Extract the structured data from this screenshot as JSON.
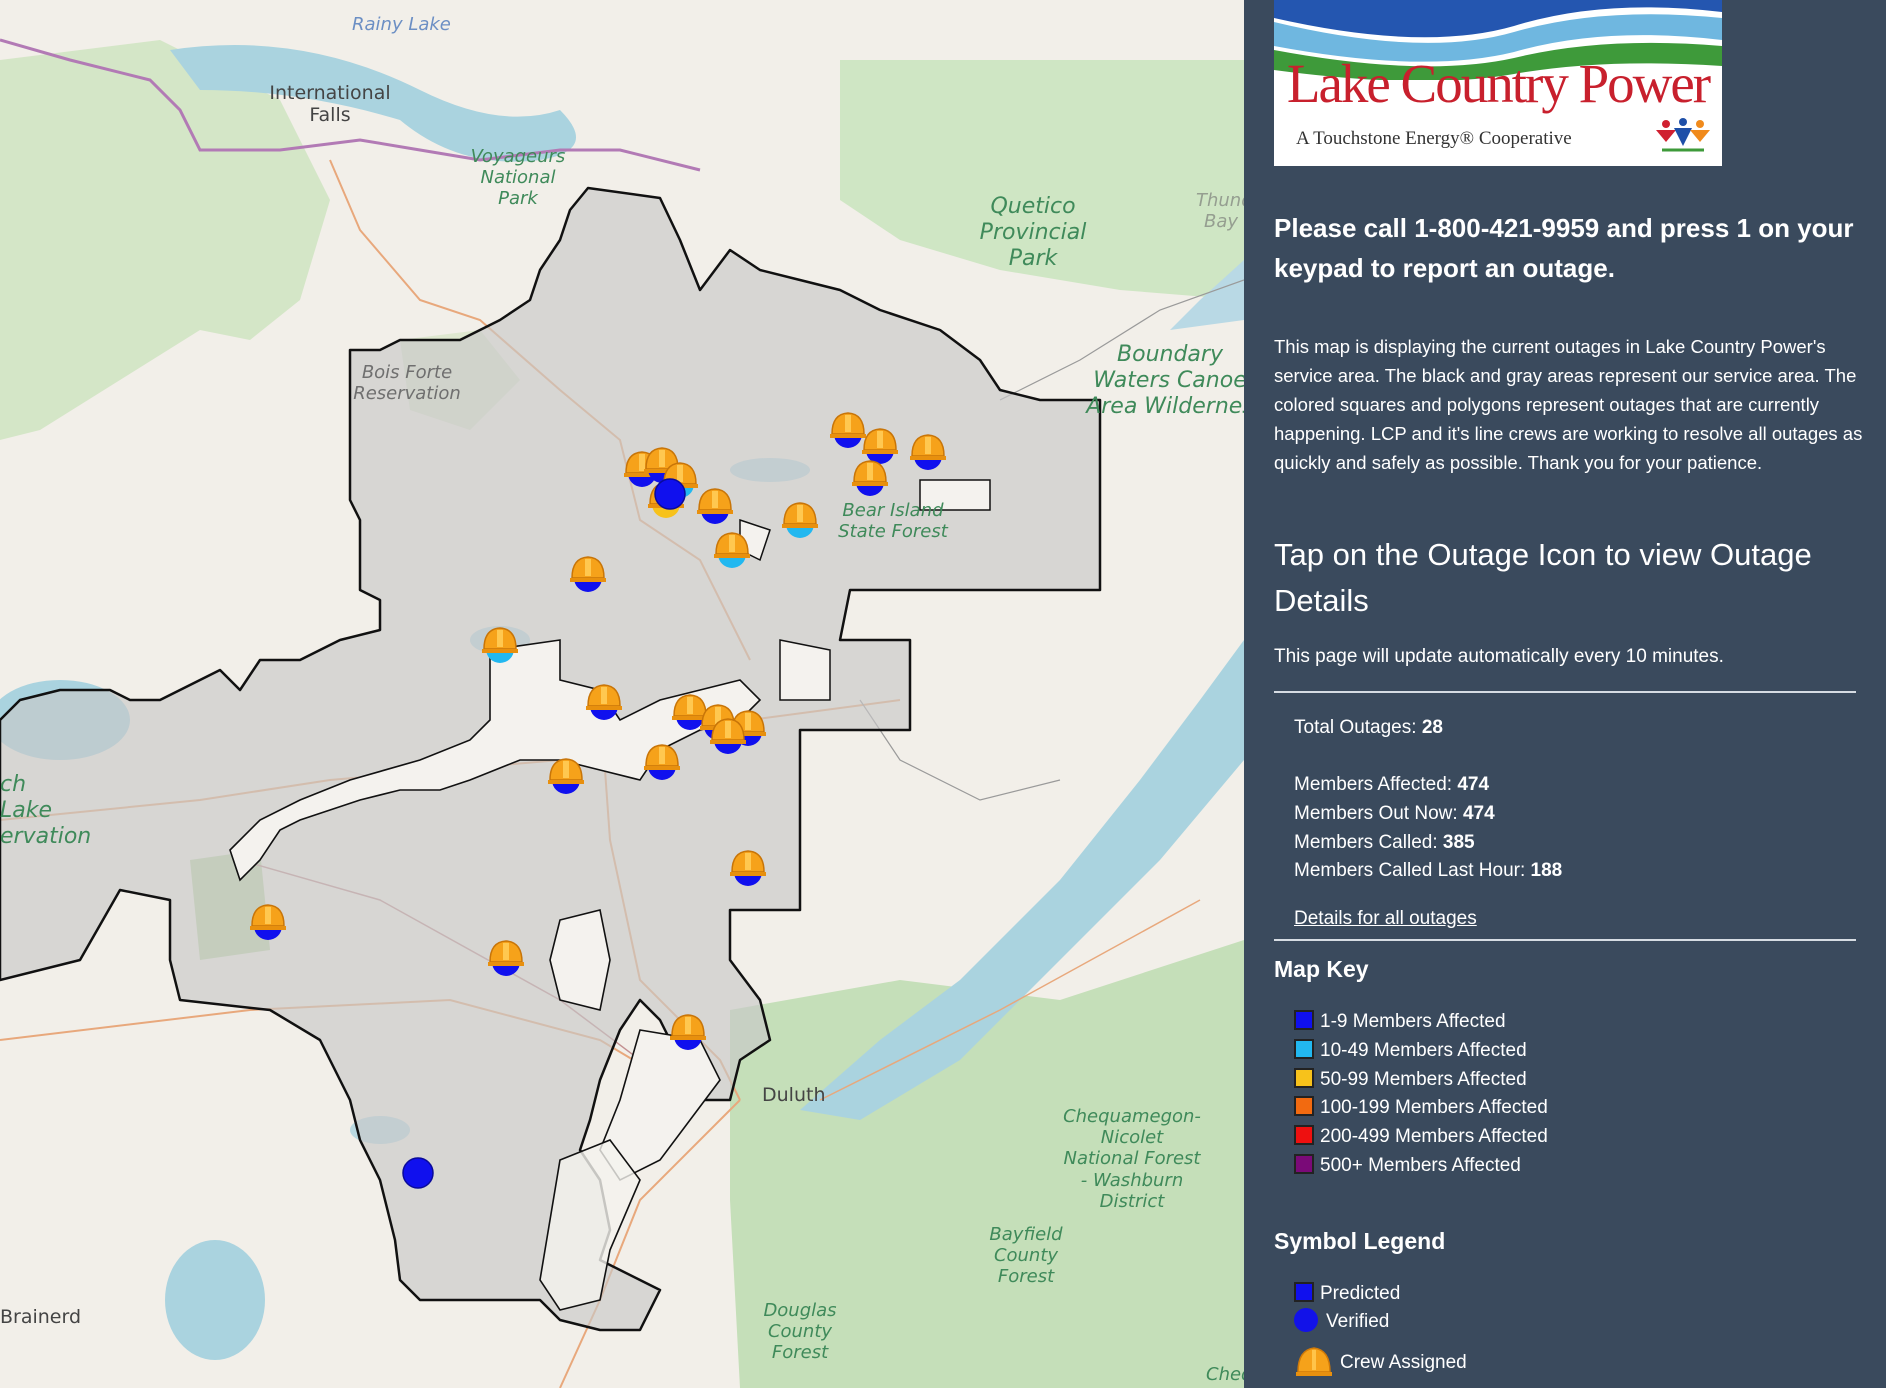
{
  "map": {
    "labels": {
      "rainy_lake": "Rainy Lake",
      "international_falls": "International Falls",
      "voyageurs": "Voyageurs National Park",
      "quetico": "Quetico Provincial Park",
      "bois_forte": "Bois Forte Reservation",
      "boundary_waters": "Boundary Waters Canoe Area Wildernes",
      "bear_island": "Bear Island State Forest",
      "leech_lake": "ch Lake ervation",
      "duluth": "Duluth",
      "chequamegon": "Chequamegon- Nicolet National Forest - Washburn District",
      "bayfield": "Bayfield County Forest",
      "douglas": "Douglas County Forest",
      "brainerd": "Brainerd",
      "thunder_bay": "Thunder Bay",
      "chequa_bottom": "Cheq"
    },
    "outage_markers": [
      {
        "type": "crew",
        "level": "1-9"
      },
      {
        "type": "crew",
        "level": "1-9"
      },
      {
        "type": "crew",
        "level": "10-49"
      },
      {
        "type": "crew",
        "level": "50-99"
      },
      {
        "type": "verified",
        "level": "1-9"
      },
      {
        "type": "crew",
        "level": "1-9"
      },
      {
        "type": "crew",
        "level": "10-49"
      },
      {
        "type": "crew",
        "level": "1-9"
      },
      {
        "type": "crew",
        "level": "10-49"
      },
      {
        "type": "crew",
        "level": "1-9"
      },
      {
        "type": "crew",
        "level": "1-9"
      },
      {
        "type": "crew",
        "level": "1-9"
      },
      {
        "type": "crew",
        "level": "1-9"
      },
      {
        "type": "crew",
        "level": "1-9"
      },
      {
        "type": "crew",
        "level": "1-9"
      },
      {
        "type": "crew",
        "level": "1-9"
      },
      {
        "type": "crew",
        "level": "1-9"
      },
      {
        "type": "crew",
        "level": "1-9"
      },
      {
        "type": "crew",
        "level": "1-9"
      },
      {
        "type": "verified",
        "level": "1-9"
      },
      {
        "type": "crew",
        "level": "1-9"
      },
      {
        "type": "crew",
        "level": "1-9"
      },
      {
        "type": "crew",
        "level": "1-9"
      },
      {
        "type": "crew",
        "level": "1-9"
      },
      {
        "type": "crew",
        "level": "10-49"
      },
      {
        "type": "crew",
        "level": "1-9"
      }
    ]
  },
  "panel": {
    "logo": {
      "name": "Lake Country Power",
      "tagline": "A Touchstone Energy® Cooperative"
    },
    "call_text": "Please call 1-800-421-9959 and press 1 on your keypad to report an outage.",
    "description": "This map is displaying the current outages in Lake Country Power's service area. The black and gray areas represent our service area. The colored squares and polygons represent outages that are currently happening. LCP and it's line crews are working to resolve all outages as quickly and safely as possible. Thank you for your patience.",
    "tap_heading": "Tap on the Outage Icon to view Outage Details",
    "update_note": "This page will update automatically every 10 minutes.",
    "stats": {
      "total_outages_label": "Total Outages:",
      "total_outages": "28",
      "members_affected_label": "Members Affected:",
      "members_affected": "474",
      "members_out_now_label": "Members Out Now:",
      "members_out_now": "474",
      "members_called_label": "Members Called:",
      "members_called": "385",
      "members_called_last_hour_label": "Members Called Last Hour:",
      "members_called_last_hour": "188"
    },
    "details_link": "Details for all outages",
    "map_key_title": "Map Key",
    "map_key": [
      {
        "label": "1-9 Members Affected",
        "color": "#1010ee"
      },
      {
        "label": "10-49 Members Affected",
        "color": "#22b8f0"
      },
      {
        "label": "50-99 Members Affected",
        "color": "#f7c21b"
      },
      {
        "label": "100-199 Members Affected",
        "color": "#f26a10"
      },
      {
        "label": "200-499 Members Affected",
        "color": "#ee1010"
      },
      {
        "label": "500+ Members Affected",
        "color": "#7a0a78"
      }
    ],
    "symbol_legend_title": "Symbol Legend",
    "symbols": {
      "predicted": "Predicted",
      "verified": "Verified",
      "crew": "Crew Assigned"
    }
  }
}
